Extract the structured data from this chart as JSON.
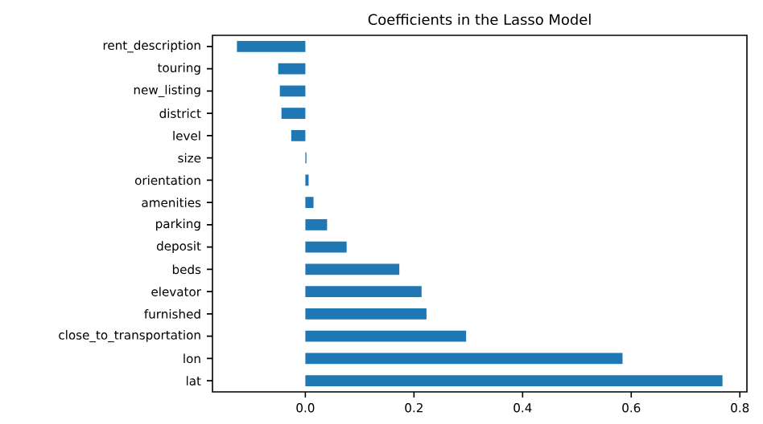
{
  "chart_data": {
    "type": "bar",
    "orientation": "horizontal",
    "title": "Coefficients in the Lasso Model",
    "categories": [
      "rent_description",
      "touring",
      "new_listing",
      "district",
      "level",
      "size",
      "orientation",
      "amenities",
      "parking",
      "deposit",
      "beds",
      "elevator",
      "furnished",
      "close_to_transportation",
      "lon",
      "lat"
    ],
    "values": [
      -0.126,
      -0.05,
      -0.047,
      -0.044,
      -0.026,
      0.002,
      0.006,
      0.015,
      0.04,
      0.076,
      0.173,
      0.214,
      0.223,
      0.296,
      0.584,
      0.768
    ],
    "color": "#1f77b4",
    "xlim": [
      -0.171,
      0.813
    ],
    "xticks": [
      {
        "value": 0,
        "label": "0.0"
      },
      {
        "value": 0.2,
        "label": "0.2"
      },
      {
        "value": 0.4,
        "label": "0.4"
      },
      {
        "value": 0.6,
        "label": "0.6"
      },
      {
        "value": 0.8,
        "label": "0.8"
      }
    ],
    "grid": false
  }
}
